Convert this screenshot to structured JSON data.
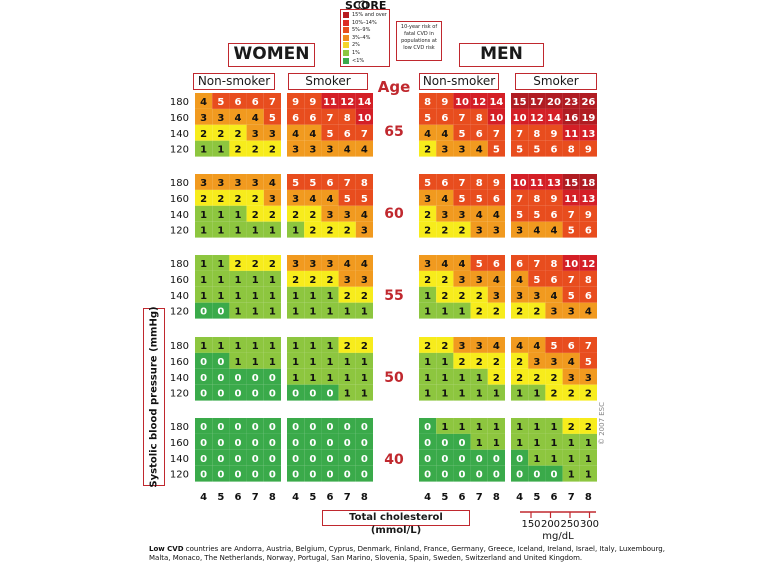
{
  "header": {
    "logo": "SCORE",
    "women": "WOMEN",
    "men": "MEN",
    "non_smoker": "Non-smoker",
    "smoker": "Smoker",
    "age": "Age"
  },
  "legend": {
    "items": [
      {
        "label": "15% and over",
        "color": "#b71b1f"
      },
      {
        "label": "10%–14%",
        "color": "#dd2a24"
      },
      {
        "label": "5%–9%",
        "color": "#e84d1e"
      },
      {
        "label": "3%–4%",
        "color": "#ef8a1f"
      },
      {
        "label": "2%",
        "color": "#f5d52b"
      },
      {
        "label": "1%",
        "color": "#8dc63f"
      },
      {
        "label": "<1%",
        "color": "#3aaa4a"
      }
    ],
    "info_lines": [
      "10-year risk of",
      "fatal CVD in",
      "populations at",
      "low CVD risk"
    ]
  },
  "colors": {
    "0": "#3aaa4a",
    "1": "#8dc63f",
    "2": "#f7ec1c",
    "3": "#f19a1f",
    "4": "#f19a1f",
    "5": "#e84d1e",
    "6": "#e84d1e",
    "7": "#e84d1e",
    "8": "#e84d1e",
    "9": "#e84d1e",
    "10": "#d41f26",
    "11": "#d41f26",
    "12": "#d41f26",
    "13": "#d41f26",
    "14": "#d41f26",
    "15": "#b01c22",
    "border": "#c0282e",
    "age_text": "#c0282e"
  },
  "chart_data": {
    "type": "heatmap",
    "title": "SCORE",
    "x_ticks": [
      "4",
      "5",
      "6",
      "7",
      "8"
    ],
    "xlabel": "Total cholesterol (mmol/L)",
    "ylabel": "Systolic blood pressure (mmHg)",
    "y_ticks": [
      "180",
      "160",
      "140",
      "120"
    ],
    "mgdl_ticks": [
      "150",
      "200",
      "250",
      "300"
    ],
    "mgdl_unit": "mg/dL",
    "groups": [
      "Women Non-smoker",
      "Women Smoker",
      "Men Non-smoker",
      "Men Smoker"
    ],
    "ages": [
      "65",
      "60",
      "55",
      "50",
      "40"
    ],
    "values": [
      [
        [
          [
            4,
            5,
            6,
            6,
            7
          ],
          [
            3,
            3,
            4,
            4,
            5
          ],
          [
            2,
            2,
            2,
            3,
            3
          ],
          [
            1,
            1,
            2,
            2,
            2
          ]
        ],
        [
          [
            3,
            3,
            3,
            3,
            4
          ],
          [
            2,
            2,
            2,
            2,
            3
          ],
          [
            1,
            1,
            1,
            2,
            2
          ],
          [
            1,
            1,
            1,
            1,
            1
          ]
        ],
        [
          [
            1,
            1,
            2,
            2,
            2
          ],
          [
            1,
            1,
            1,
            1,
            1
          ],
          [
            1,
            1,
            1,
            1,
            1
          ],
          [
            0,
            0,
            1,
            1,
            1
          ]
        ],
        [
          [
            1,
            1,
            1,
            1,
            1
          ],
          [
            0,
            0,
            1,
            1,
            1
          ],
          [
            0,
            0,
            0,
            0,
            0
          ],
          [
            0,
            0,
            0,
            0,
            0
          ]
        ],
        [
          [
            0,
            0,
            0,
            0,
            0
          ],
          [
            0,
            0,
            0,
            0,
            0
          ],
          [
            0,
            0,
            0,
            0,
            0
          ],
          [
            0,
            0,
            0,
            0,
            0
          ]
        ]
      ],
      [
        [
          [
            9,
            9,
            11,
            12,
            14
          ],
          [
            6,
            6,
            7,
            8,
            10
          ],
          [
            4,
            4,
            5,
            6,
            7
          ],
          [
            3,
            3,
            3,
            4,
            4
          ]
        ],
        [
          [
            5,
            5,
            6,
            7,
            8
          ],
          [
            3,
            4,
            4,
            5,
            5
          ],
          [
            2,
            2,
            3,
            3,
            4
          ],
          [
            1,
            2,
            2,
            2,
            3
          ]
        ],
        [
          [
            3,
            3,
            3,
            4,
            4
          ],
          [
            2,
            2,
            2,
            3,
            3
          ],
          [
            1,
            1,
            1,
            2,
            2
          ],
          [
            1,
            1,
            1,
            1,
            1
          ]
        ],
        [
          [
            1,
            1,
            1,
            2,
            2
          ],
          [
            1,
            1,
            1,
            1,
            1
          ],
          [
            1,
            1,
            1,
            1,
            1
          ],
          [
            0,
            0,
            0,
            1,
            1
          ]
        ],
        [
          [
            0,
            0,
            0,
            0,
            0
          ],
          [
            0,
            0,
            0,
            0,
            0
          ],
          [
            0,
            0,
            0,
            0,
            0
          ],
          [
            0,
            0,
            0,
            0,
            0
          ]
        ]
      ],
      [
        [
          [
            8,
            9,
            10,
            12,
            14
          ],
          [
            5,
            6,
            7,
            8,
            10
          ],
          [
            4,
            4,
            5,
            6,
            7
          ],
          [
            2,
            3,
            3,
            4,
            5
          ]
        ],
        [
          [
            5,
            6,
            7,
            8,
            9
          ],
          [
            3,
            4,
            5,
            5,
            6
          ],
          [
            2,
            3,
            3,
            4,
            4
          ],
          [
            2,
            2,
            2,
            3,
            3
          ]
        ],
        [
          [
            3,
            4,
            4,
            5,
            6
          ],
          [
            2,
            2,
            3,
            3,
            4
          ],
          [
            1,
            2,
            2,
            2,
            3
          ],
          [
            1,
            1,
            1,
            2,
            2
          ]
        ],
        [
          [
            2,
            2,
            3,
            3,
            4
          ],
          [
            1,
            1,
            2,
            2,
            2
          ],
          [
            1,
            1,
            1,
            1,
            2
          ],
          [
            1,
            1,
            1,
            1,
            1
          ]
        ],
        [
          [
            0,
            1,
            1,
            1,
            1
          ],
          [
            0,
            0,
            0,
            1,
            1
          ],
          [
            0,
            0,
            0,
            0,
            0
          ],
          [
            0,
            0,
            0,
            0,
            0
          ]
        ]
      ],
      [
        [
          [
            15,
            17,
            20,
            23,
            26
          ],
          [
            10,
            12,
            14,
            16,
            19
          ],
          [
            7,
            8,
            9,
            11,
            13
          ],
          [
            5,
            5,
            6,
            8,
            9
          ]
        ],
        [
          [
            10,
            11,
            13,
            15,
            18
          ],
          [
            7,
            8,
            9,
            11,
            13
          ],
          [
            5,
            5,
            6,
            7,
            9
          ],
          [
            3,
            4,
            4,
            5,
            6
          ]
        ],
        [
          [
            6,
            7,
            8,
            10,
            12
          ],
          [
            4,
            5,
            6,
            7,
            8
          ],
          [
            3,
            3,
            4,
            5,
            6
          ],
          [
            2,
            2,
            3,
            3,
            4
          ]
        ],
        [
          [
            4,
            4,
            5,
            6,
            7
          ],
          [
            2,
            3,
            3,
            4,
            5
          ],
          [
            2,
            2,
            2,
            3,
            3
          ],
          [
            1,
            1,
            2,
            2,
            2
          ]
        ],
        [
          [
            1,
            1,
            1,
            2,
            2
          ],
          [
            1,
            1,
            1,
            1,
            1
          ],
          [
            0,
            1,
            1,
            1,
            1
          ],
          [
            0,
            0,
            0,
            1,
            1
          ]
        ]
      ]
    ]
  },
  "footnote": {
    "bold": "Low CVD",
    "text": " countries are Andorra, Austria, Belgium, Cyprus, Denmark, Finland, France, Germany, Greece, Iceland, Ireland, Israel, Italy, Luxembourg, Malta, Monaco, The Netherlands, Norway, Portugal, San Marino, Slovenia, Spain, Sweden, Switzerland and United Kingdom."
  },
  "copyright": "© 2007 ESC"
}
